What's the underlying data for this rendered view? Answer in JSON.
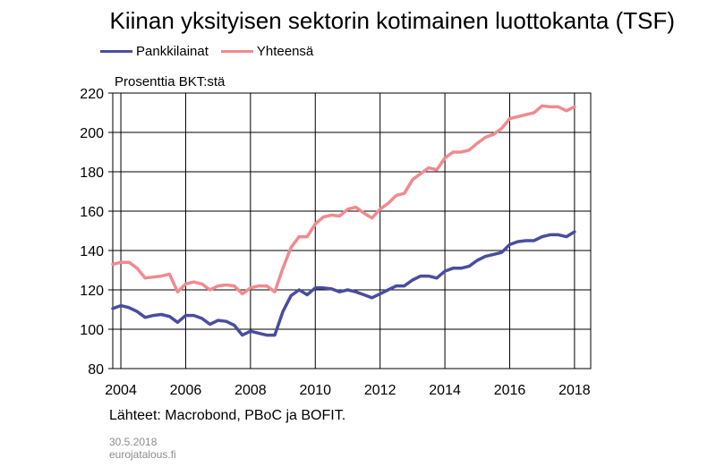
{
  "title": "Kiinan yksityisen sektorin kotimainen luottokanta (TSF)",
  "unit_label": "Prosenttia BKT:stä",
  "source": "Lähteet: Macrobond, PBoC ja BOFIT.",
  "date_stamp": "30.5.2018",
  "site": "eurojatalous.fi",
  "colors": {
    "pankkilainat": "#4a4d9e",
    "yhteensa": "#f08a8e",
    "grid": "#000000"
  },
  "chart_data": {
    "type": "line",
    "title": "Kiinan yksityisen sektorin kotimainen luottokanta (TSF)",
    "ylabel": "Prosenttia BKT:stä",
    "xlim": [
      2003.75,
      2018.5
    ],
    "ylim": [
      80,
      220
    ],
    "yticks": [
      "80",
      "100",
      "120",
      "140",
      "160",
      "180",
      "200",
      "220"
    ],
    "xticks": [
      "2004",
      "2006",
      "2008",
      "2010",
      "2012",
      "2014",
      "2016",
      "2018"
    ],
    "grid": true,
    "legend": "top-left",
    "x": [
      2003.75,
      2004.0,
      2004.25,
      2004.5,
      2004.75,
      2005.0,
      2005.25,
      2005.5,
      2005.75,
      2006.0,
      2006.25,
      2006.5,
      2006.75,
      2007.0,
      2007.25,
      2007.5,
      2007.75,
      2008.0,
      2008.25,
      2008.5,
      2008.75,
      2009.0,
      2009.25,
      2009.5,
      2009.75,
      2010.0,
      2010.25,
      2010.5,
      2010.75,
      2011.0,
      2011.25,
      2011.5,
      2011.75,
      2012.0,
      2012.25,
      2012.5,
      2012.75,
      2013.0,
      2013.25,
      2013.5,
      2013.75,
      2014.0,
      2014.25,
      2014.5,
      2014.75,
      2015.0,
      2015.25,
      2015.5,
      2015.75,
      2016.0,
      2016.25,
      2016.5,
      2016.75,
      2017.0,
      2017.25,
      2017.5,
      2017.75,
      2018.0
    ],
    "series": [
      {
        "name": "Pankkilainat",
        "values": [
          110.5,
          112,
          111,
          109,
          106,
          107,
          107.5,
          106.5,
          103.5,
          107,
          107,
          105.5,
          102.5,
          104.5,
          104,
          102,
          97,
          99,
          98,
          97,
          97,
          109,
          117,
          120,
          117.5,
          121,
          121,
          120.5,
          119,
          120,
          119,
          117.5,
          116,
          118,
          120,
          122,
          122,
          125,
          127,
          127,
          126,
          129.5,
          131,
          131,
          132,
          135,
          137,
          138,
          139,
          143,
          144.5,
          145,
          145,
          147,
          148,
          148,
          147,
          149.5
        ]
      },
      {
        "name": "Yhteensä",
        "values": [
          133,
          134,
          134,
          131,
          126,
          126.5,
          127,
          128,
          119,
          123,
          124,
          123,
          120,
          122,
          122.5,
          122,
          118,
          121,
          122,
          122,
          119,
          131,
          141.5,
          147,
          147,
          153.5,
          157,
          158,
          157.5,
          161,
          162,
          159,
          156.5,
          161,
          164,
          168,
          169,
          176,
          179,
          182,
          181,
          187,
          190,
          190,
          191,
          194.5,
          197.5,
          199,
          202,
          207,
          208,
          209,
          210,
          213.5,
          213,
          213,
          211,
          213
        ]
      }
    ]
  }
}
